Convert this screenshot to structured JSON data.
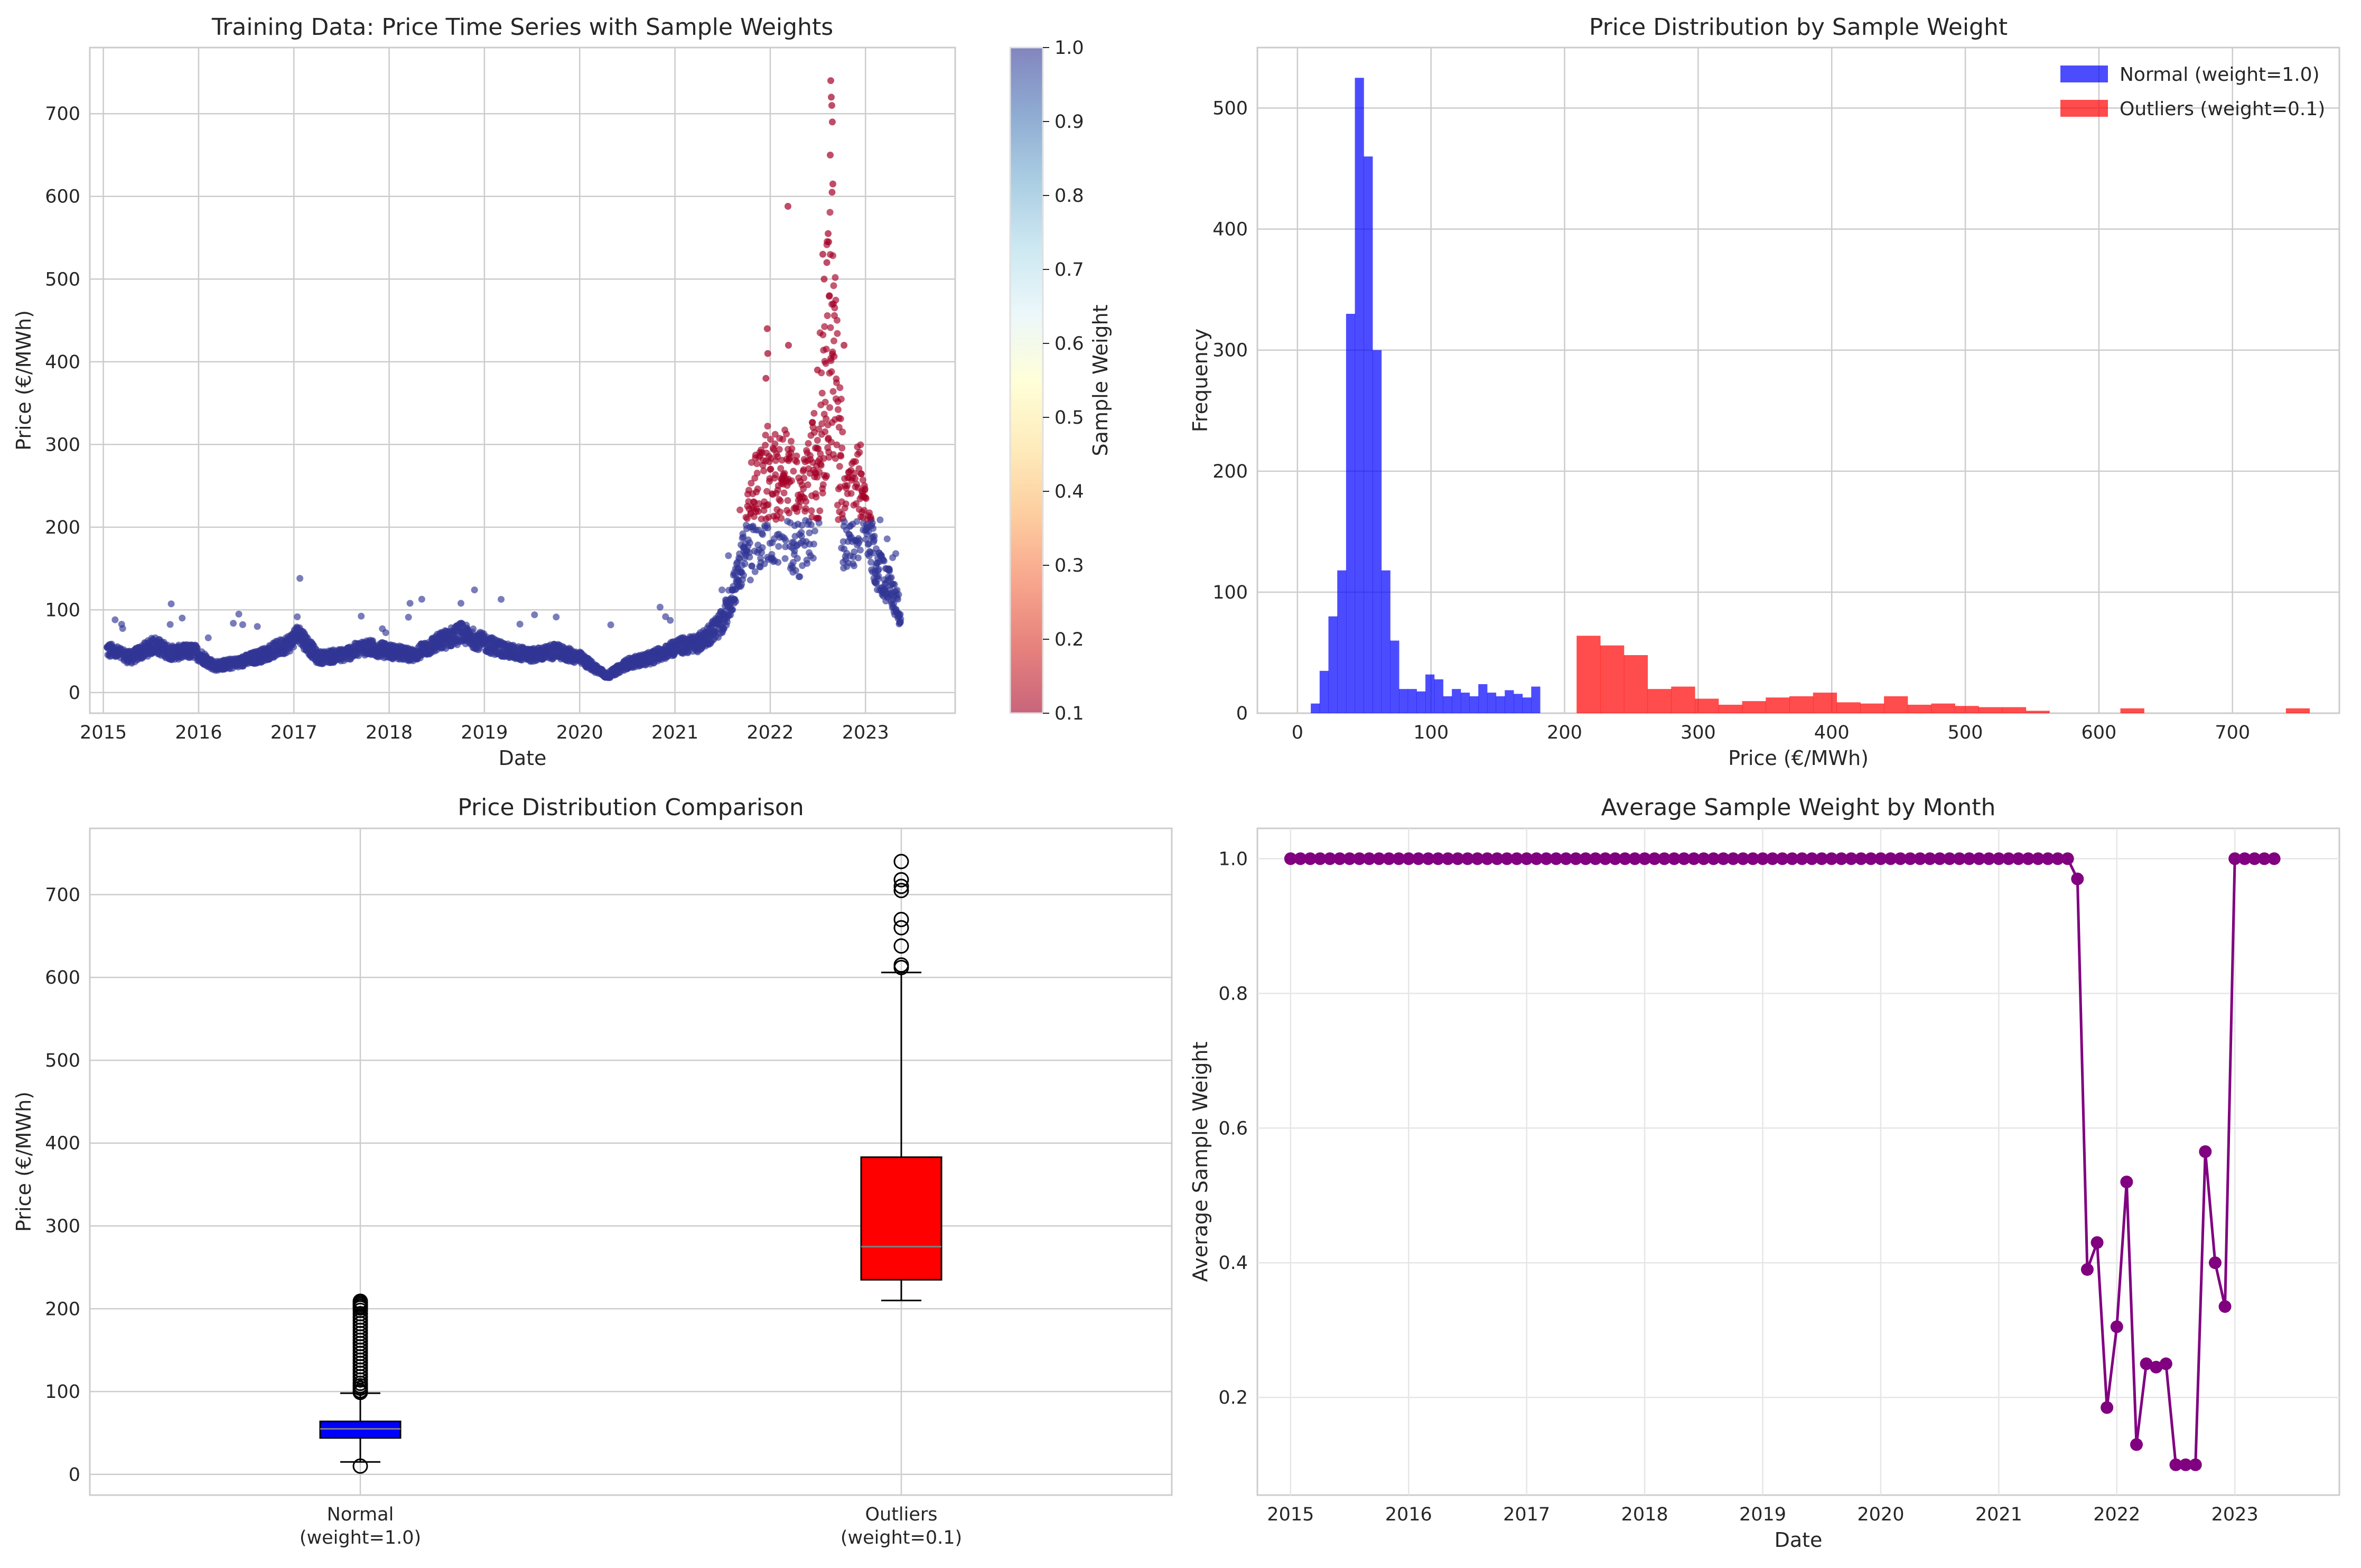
{
  "chart_data": [
    {
      "type": "scatter",
      "title": "Training Data: Price Time Series with Sample Weights",
      "xlabel": "Date",
      "ylabel": "Price (€/MWh)",
      "xlim": [
        "2014-11-10",
        "2023-12-10"
      ],
      "ylim": [
        -25,
        780
      ],
      "x_ticks": [
        "2015",
        "2016",
        "2017",
        "2018",
        "2019",
        "2020",
        "2021",
        "2022",
        "2023"
      ],
      "y_ticks": [
        0,
        100,
        200,
        300,
        400,
        500,
        600,
        700
      ],
      "grid": true,
      "colorbar": {
        "label": "Sample Weight",
        "range": [
          0.1,
          1.0
        ],
        "ticks": [
          "0.1",
          "0.2",
          "0.3",
          "0.4",
          "0.5",
          "0.6",
          "0.7",
          "0.8",
          "0.9",
          "1.0"
        ],
        "colormap": [
          "#a50026",
          "#d73027",
          "#f46d43",
          "#fdae61",
          "#fee090",
          "#ffffbf",
          "#e0f3f8",
          "#abd9e9",
          "#74add1",
          "#4575b4",
          "#313695"
        ]
      },
      "normal_color": "#313695",
      "outlier_color": "#a50026",
      "price_profile": [
        [
          "2015-01-15",
          52
        ],
        [
          "2015-04-15",
          42
        ],
        [
          "2015-07-15",
          58
        ],
        [
          "2015-09-15",
          48
        ],
        [
          "2015-12-15",
          50
        ],
        [
          "2016-03-01",
          32
        ],
        [
          "2016-06-01",
          36
        ],
        [
          "2016-09-01",
          45
        ],
        [
          "2016-12-15",
          60
        ],
        [
          "2017-01-20",
          72
        ],
        [
          "2017-04-01",
          42
        ],
        [
          "2017-07-01",
          45
        ],
        [
          "2017-10-01",
          55
        ],
        [
          "2018-01-01",
          50
        ],
        [
          "2018-04-01",
          45
        ],
        [
          "2018-07-01",
          60
        ],
        [
          "2018-10-01",
          72
        ],
        [
          "2019-01-01",
          60
        ],
        [
          "2019-04-01",
          50
        ],
        [
          "2019-07-01",
          45
        ],
        [
          "2019-10-01",
          50
        ],
        [
          "2020-01-01",
          42
        ],
        [
          "2020-04-15",
          20
        ],
        [
          "2020-07-01",
          35
        ],
        [
          "2020-10-01",
          42
        ],
        [
          "2021-01-01",
          55
        ],
        [
          "2021-04-01",
          60
        ],
        [
          "2021-07-01",
          85
        ],
        [
          "2021-09-01",
          140
        ],
        [
          "2021-10-15",
          205
        ],
        [
          "2021-12-15",
          240
        ],
        [
          "2022-03-01",
          240
        ],
        [
          "2022-05-01",
          200
        ],
        [
          "2022-06-15",
          250
        ],
        [
          "2022-08-20",
          450
        ],
        [
          "2022-10-15",
          200
        ],
        [
          "2022-12-15",
          230
        ],
        [
          "2023-02-15",
          150
        ],
        [
          "2023-04-15",
          120
        ],
        [
          "2023-05-15",
          95
        ]
      ],
      "peak_points": [
        [
          "2022-08-20",
          740
        ],
        [
          "2022-08-22",
          720
        ],
        [
          "2022-08-24",
          710
        ],
        [
          "2022-08-26",
          690
        ],
        [
          "2022-08-18",
          650
        ],
        [
          "2022-08-28",
          615
        ],
        [
          "2022-08-25",
          605
        ],
        [
          "2022-03-08",
          588
        ],
        [
          "2022-08-10",
          555
        ],
        [
          "2022-08-12",
          545
        ],
        [
          "2022-07-20",
          530
        ],
        [
          "2022-08-05",
          520
        ],
        [
          "2022-07-25",
          500
        ],
        [
          "2022-08-15",
          480
        ],
        [
          "2021-12-20",
          440
        ],
        [
          "2022-08-30",
          470
        ],
        [
          "2022-10-10",
          420
        ],
        [
          "2021-12-22",
          410
        ],
        [
          "2022-03-10",
          420
        ],
        [
          "2022-06-30",
          390
        ],
        [
          "2021-12-15",
          380
        ]
      ]
    },
    {
      "type": "bar",
      "title": "Price Distribution by Sample Weight",
      "xlabel": "Price (€/MWh)",
      "ylabel": "Frequency",
      "xlim": [
        -30,
        780
      ],
      "ylim": [
        0,
        550
      ],
      "x_ticks": [
        0,
        100,
        200,
        300,
        400,
        500,
        600,
        700
      ],
      "y_ticks": [
        0,
        100,
        200,
        300,
        400,
        500
      ],
      "grid": true,
      "legend_position": "top-right",
      "series": [
        {
          "name": "Normal (weight=1.0)",
          "color": "#0000ff",
          "bin_start": 10,
          "bin_width": 6.6,
          "counts": [
            8,
            35,
            80,
            118,
            330,
            525,
            460,
            300,
            118,
            60,
            20,
            20,
            18,
            32,
            28,
            14,
            20,
            17,
            14,
            24,
            17,
            14,
            19,
            16,
            13,
            22
          ]
        },
        {
          "name": "Outliers (weight=0.1)",
          "color": "#ff0000",
          "bin_start": 209,
          "bin_width": 17.7,
          "counts": [
            64,
            56,
            48,
            20,
            22,
            12,
            7,
            10,
            13,
            14,
            17,
            9,
            8,
            14,
            7,
            8,
            6,
            5,
            5,
            2,
            0,
            0,
            0,
            4,
            0,
            0,
            0,
            0,
            0,
            0,
            4
          ]
        }
      ]
    },
    {
      "type": "box",
      "title": "Price Distribution Comparison",
      "ylabel": "Price (€/MWh)",
      "categories": [
        "Normal\n(weight=1.0)",
        "Outliers\n(weight=0.1)"
      ],
      "category_lines": [
        [
          "Normal",
          "(weight=1.0)"
        ],
        [
          "Outliers",
          "(weight=0.1)"
        ]
      ],
      "ylim": [
        -25,
        780
      ],
      "y_ticks": [
        0,
        100,
        200,
        300,
        400,
        500,
        600,
        700
      ],
      "grid": true,
      "boxes": [
        {
          "color": "#0000ff",
          "whisker_low": 15,
          "q1": 44,
          "median": 55,
          "q3": 64,
          "whisker_high": 98,
          "fliers": [
            10,
            99,
            101,
            104,
            107,
            110,
            114,
            118,
            122,
            126,
            130,
            134,
            138,
            142,
            146,
            150,
            154,
            158,
            162,
            166,
            170,
            174,
            178,
            182,
            186,
            190,
            194,
            198,
            201,
            203,
            205,
            207,
            209
          ]
        },
        {
          "color": "#ff0000",
          "whisker_low": 210,
          "q1": 235,
          "median": 275,
          "q3": 383,
          "whisker_high": 606,
          "fliers": [
            612,
            615,
            638,
            660,
            670,
            705,
            710,
            718,
            740
          ]
        }
      ]
    },
    {
      "type": "line",
      "title": "Average Sample Weight by Month",
      "xlabel": "Date",
      "ylabel": "Average Sample Weight",
      "xlim": [
        "2014-09-20",
        "2023-11-20"
      ],
      "ylim": [
        0.055,
        1.045
      ],
      "x_ticks": [
        "2015",
        "2016",
        "2017",
        "2018",
        "2019",
        "2020",
        "2021",
        "2022",
        "2023"
      ],
      "y_ticks": [
        "0.2",
        "0.4",
        "0.6",
        "0.8",
        "1.0"
      ],
      "grid": true,
      "color": "#800080",
      "start_month": "2015-01",
      "values": [
        1.0,
        1.0,
        1.0,
        1.0,
        1.0,
        1.0,
        1.0,
        1.0,
        1.0,
        1.0,
        1.0,
        1.0,
        1.0,
        1.0,
        1.0,
        1.0,
        1.0,
        1.0,
        1.0,
        1.0,
        1.0,
        1.0,
        1.0,
        1.0,
        1.0,
        1.0,
        1.0,
        1.0,
        1.0,
        1.0,
        1.0,
        1.0,
        1.0,
        1.0,
        1.0,
        1.0,
        1.0,
        1.0,
        1.0,
        1.0,
        1.0,
        1.0,
        1.0,
        1.0,
        1.0,
        1.0,
        1.0,
        1.0,
        1.0,
        1.0,
        1.0,
        1.0,
        1.0,
        1.0,
        1.0,
        1.0,
        1.0,
        1.0,
        1.0,
        1.0,
        1.0,
        1.0,
        1.0,
        1.0,
        1.0,
        1.0,
        1.0,
        1.0,
        1.0,
        1.0,
        1.0,
        1.0,
        1.0,
        1.0,
        1.0,
        1.0,
        1.0,
        1.0,
        1.0,
        1.0,
        0.97,
        0.39,
        0.43,
        0.185,
        0.305,
        0.52,
        0.13,
        0.25,
        0.245,
        0.25,
        0.1,
        0.1,
        0.1,
        0.565,
        0.4,
        0.335,
        1.0,
        1.0,
        1.0,
        1.0,
        1.0
      ]
    }
  ]
}
